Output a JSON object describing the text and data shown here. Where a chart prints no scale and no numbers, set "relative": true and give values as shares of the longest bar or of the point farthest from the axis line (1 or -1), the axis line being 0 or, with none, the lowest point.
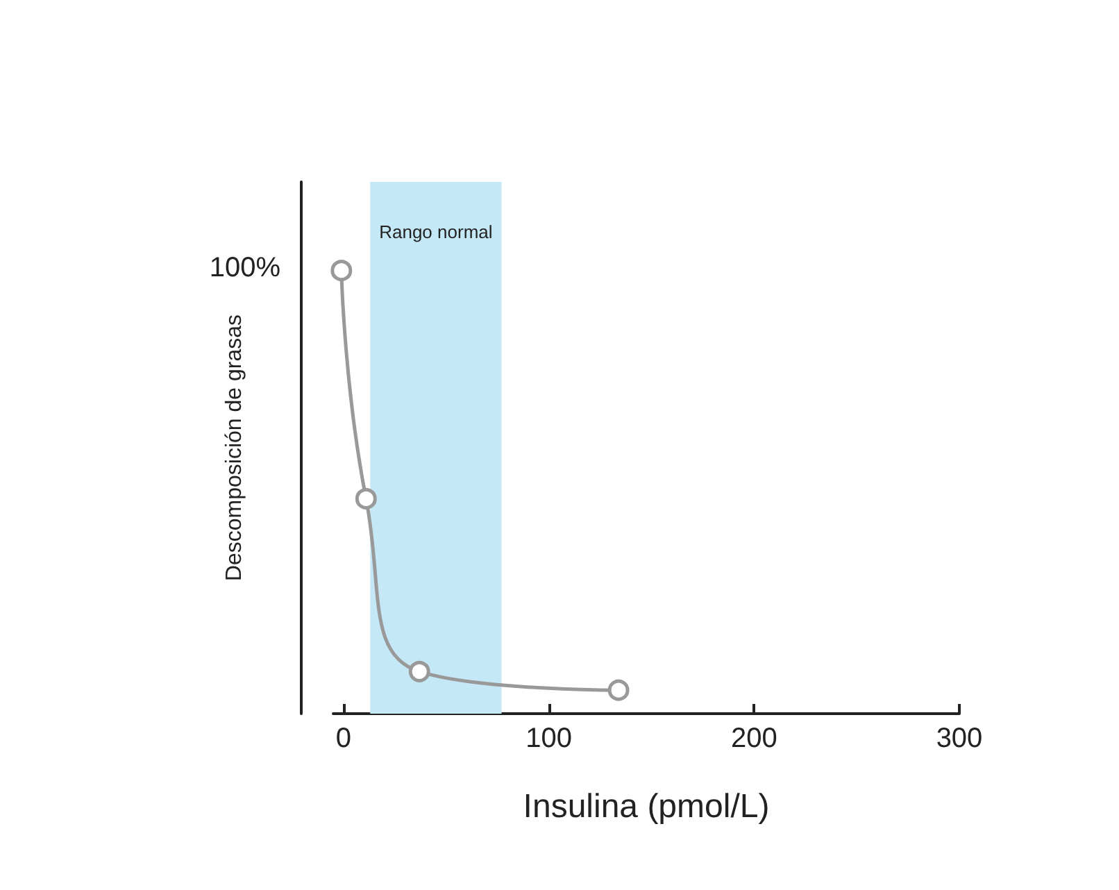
{
  "chart_data": {
    "type": "line",
    "xlabel": "Insulina (pmol/L)",
    "ylabel": "Descomposición de grasas",
    "relative": true,
    "x": [
      -1,
      11,
      37,
      134
    ],
    "series": [
      {
        "color": "#999999",
        "values": [
          1,
          0.485,
          0.095,
          0.053
        ]
      }
    ],
    "xlim": [
      -5,
      300
    ],
    "xticks": [
      0,
      100,
      200,
      300
    ],
    "bands": [
      {
        "axis": "x",
        "from": 13,
        "to": 77,
        "label": "Rango normal",
        "color": "#c5e8f7"
      }
    ],
    "annotations": [
      "100%"
    ],
    "marker": "circle",
    "grid": false
  }
}
